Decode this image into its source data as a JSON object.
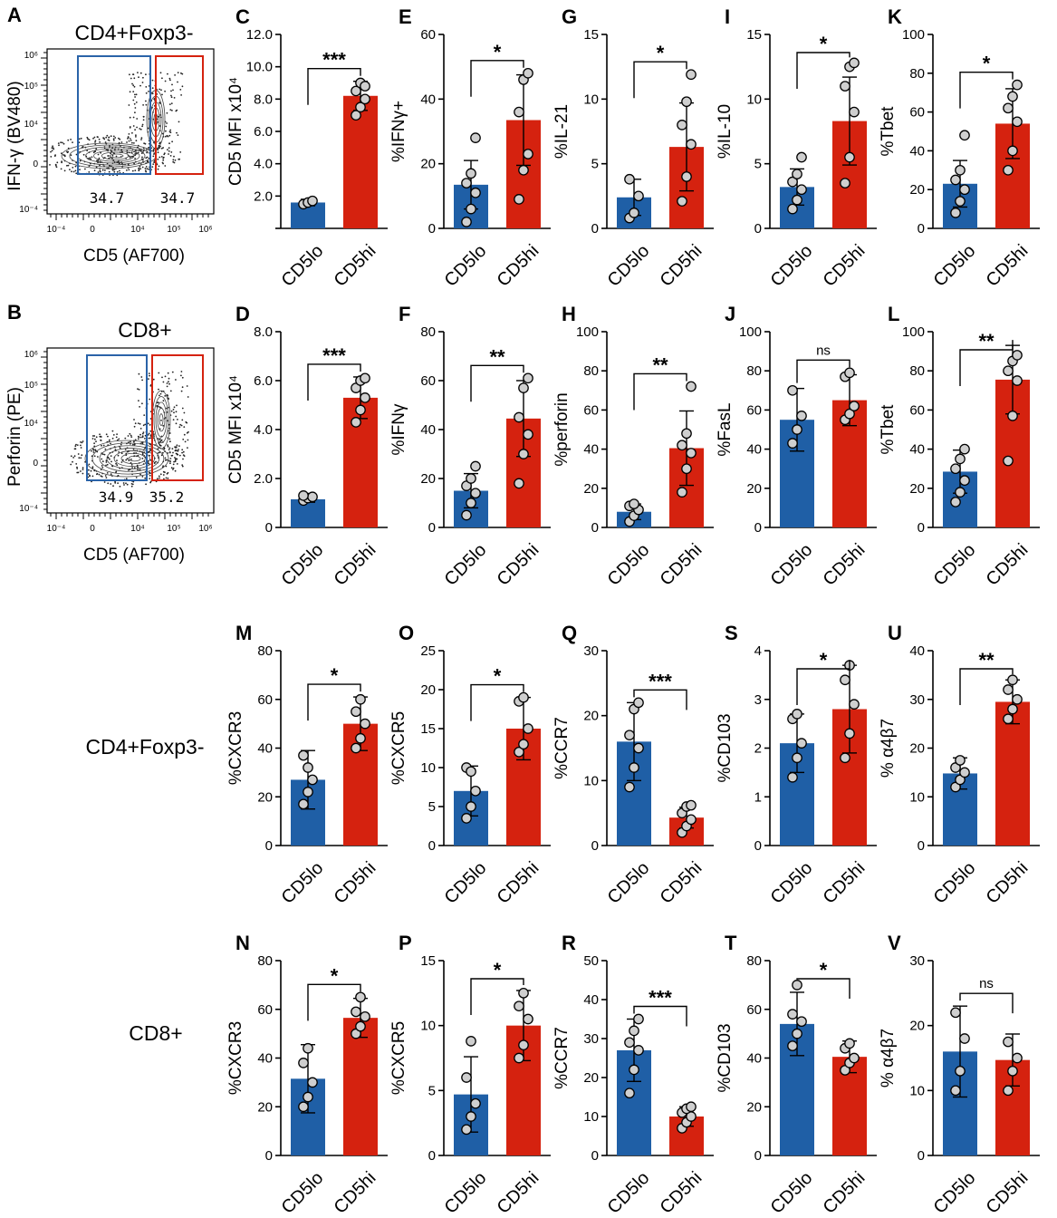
{
  "colors": {
    "lo": "#1f5fa6",
    "hi": "#d5220f",
    "dot": "#cfcfcf",
    "contour": "#444444"
  },
  "row_labels": {
    "row3": "CD4+Foxp3-",
    "row4": "CD8+"
  },
  "flow_panels": [
    {
      "id": "A",
      "label": "A",
      "title": "CD4+Foxp3-",
      "ylabel": "IFN-γ (BV480)",
      "xlabel": "CD5 (AF700)",
      "gate_lo_pct": "34.7",
      "gate_hi_pct": "34.7",
      "x_ticks": [
        "10⁻⁴",
        "0",
        "10⁴",
        "10⁵",
        "10⁶"
      ],
      "y_ticks": [
        "10⁶",
        "10⁵",
        "10⁴",
        "0",
        "10⁻⁴"
      ]
    },
    {
      "id": "B",
      "label": "B",
      "title": "CD8+",
      "ylabel": "Perforin (PE)",
      "xlabel": "CD5 (AF700)",
      "gate_lo_pct": "34.9",
      "gate_hi_pct": "35.2",
      "x_ticks": [
        "10⁻⁴",
        "0",
        "10⁴",
        "10⁵",
        "10⁶"
      ],
      "y_ticks": [
        "10⁶",
        "10⁵",
        "10⁴",
        "0",
        "10⁻⁴"
      ]
    }
  ],
  "chart_data": [
    {
      "id": "C",
      "type": "bar",
      "label": "C",
      "ylabel": "CD5 MFI x10⁴",
      "categories": [
        "CD5lo",
        "CD5hi"
      ],
      "ylim": [
        0,
        12
      ],
      "yticks": [
        "",
        "2.0",
        "4.0",
        "6.0",
        "8.0",
        "10.0",
        "12.0"
      ],
      "means": [
        1.6,
        8.2
      ],
      "sd": [
        0.2,
        0.9
      ],
      "points": [
        [
          1.5,
          1.6,
          1.7
        ],
        [
          7.0,
          7.5,
          8.0,
          8.5,
          9.0,
          8.8
        ]
      ],
      "sig": "***"
    },
    {
      "id": "E",
      "type": "bar",
      "label": "E",
      "ylabel": "%IFNγ+",
      "categories": [
        "CD5lo",
        "CD5hi"
      ],
      "ylim": [
        0,
        60
      ],
      "yticks": [
        "0",
        "20",
        "40",
        "60"
      ],
      "means": [
        13.5,
        33.5
      ],
      "sd": [
        7.5,
        14
      ],
      "points": [
        [
          2,
          6,
          11,
          14,
          17,
          28
        ],
        [
          9,
          18,
          23,
          36,
          46,
          48
        ]
      ],
      "sig": "*"
    },
    {
      "id": "G",
      "type": "bar",
      "label": "G",
      "ylabel": "%IL-21",
      "categories": [
        "CD5lo",
        "CD5hi"
      ],
      "ylim": [
        0,
        15
      ],
      "yticks": [
        "0",
        "5",
        "10",
        "15"
      ],
      "means": [
        2.4,
        6.3
      ],
      "sd": [
        1.4,
        3.4
      ],
      "points": [
        [
          0.8,
          1.2,
          2.5,
          3.8
        ],
        [
          2.1,
          4.0,
          6.5,
          8.0,
          9.8,
          11.9
        ]
      ],
      "sig": "*"
    },
    {
      "id": "I",
      "type": "bar",
      "label": "I",
      "ylabel": "%IL-10",
      "categories": [
        "CD5lo",
        "CD5hi"
      ],
      "ylim": [
        0,
        15
      ],
      "yticks": [
        "0",
        "5",
        "10",
        "15"
      ],
      "means": [
        3.2,
        8.3
      ],
      "sd": [
        1.4,
        3.4
      ],
      "points": [
        [
          1.5,
          2.2,
          3.0,
          3.6,
          4.2,
          5.5
        ],
        [
          3.5,
          5.5,
          9.0,
          11.0,
          12.5,
          12.8
        ]
      ],
      "sig": "*"
    },
    {
      "id": "K",
      "type": "bar",
      "label": "K",
      "ylabel": "%Tbet",
      "categories": [
        "CD5lo",
        "CD5hi"
      ],
      "ylim": [
        0,
        100
      ],
      "yticks": [
        "0",
        "20",
        "40",
        "60",
        "80",
        "100"
      ],
      "means": [
        23,
        54
      ],
      "sd": [
        12,
        18
      ],
      "points": [
        [
          8,
          14,
          20,
          25,
          30,
          48
        ],
        [
          30,
          40,
          55,
          62,
          68,
          74
        ]
      ],
      "sig": "*"
    },
    {
      "id": "D",
      "type": "bar",
      "label": "D",
      "ylabel": "CD5 MFI x10⁴",
      "categories": [
        "CD5lo",
        "CD5hi"
      ],
      "ylim": [
        0,
        8
      ],
      "yticks": [
        "0",
        "2.0",
        "4.0",
        "6.0",
        "8.0"
      ],
      "means": [
        1.15,
        5.3
      ],
      "sd": [
        0.12,
        0.85
      ],
      "points": [
        [
          1.1,
          1.2,
          1.25,
          1.3
        ],
        [
          4.3,
          4.8,
          5.3,
          5.7,
          6.0,
          6.1
        ]
      ],
      "sig": "***"
    },
    {
      "id": "F",
      "type": "bar",
      "label": "F",
      "ylabel": "%IFNγ",
      "categories": [
        "CD5lo",
        "CD5hi"
      ],
      "ylim": [
        0,
        80
      ],
      "yticks": [
        "0",
        "20",
        "40",
        "60",
        "80"
      ],
      "means": [
        15,
        44.5
      ],
      "sd": [
        7,
        15.5
      ],
      "points": [
        [
          5,
          10,
          14,
          17,
          20,
          25
        ],
        [
          18,
          30,
          38,
          45,
          57,
          61
        ]
      ],
      "sig": "**"
    },
    {
      "id": "H",
      "type": "bar",
      "label": "H",
      "ylabel": "%perforin",
      "categories": [
        "CD5lo",
        "CD5hi"
      ],
      "ylim": [
        0,
        100
      ],
      "yticks": [
        "0",
        "20",
        "40",
        "60",
        "80",
        "100"
      ],
      "means": [
        8,
        40.5
      ],
      "sd": [
        4,
        19
      ],
      "points": [
        [
          3,
          6,
          9,
          11,
          12
        ],
        [
          18,
          30,
          38,
          42,
          48,
          72
        ]
      ],
      "sig": "**"
    },
    {
      "id": "J",
      "type": "bar",
      "label": "J",
      "ylabel": "%FasL",
      "categories": [
        "CD5lo",
        "CD5hi"
      ],
      "ylim": [
        0,
        100
      ],
      "yticks": [
        "0",
        "20",
        "40",
        "60",
        "80",
        "100"
      ],
      "means": [
        55,
        65
      ],
      "sd": [
        16,
        13
      ],
      "points": [
        [
          43,
          50,
          57,
          70
        ],
        [
          55,
          58,
          62,
          77,
          79
        ]
      ],
      "sig": "ns"
    },
    {
      "id": "L",
      "type": "bar",
      "label": "L",
      "ylabel": "%Tbet",
      "categories": [
        "CD5lo",
        "CD5hi"
      ],
      "ylim": [
        0,
        100
      ],
      "yticks": [
        "0",
        "20",
        "40",
        "60",
        "80",
        "100"
      ],
      "means": [
        28.5,
        75.5
      ],
      "sd": [
        11,
        17.5
      ],
      "points": [
        [
          13,
          18,
          24,
          30,
          35,
          40
        ],
        [
          34,
          57,
          75,
          80,
          85,
          88
        ]
      ],
      "sig": "**"
    },
    {
      "id": "M",
      "type": "bar",
      "label": "M",
      "ylabel": "%CXCR3",
      "categories": [
        "CD5lo",
        "CD5hi"
      ],
      "ylim": [
        0,
        80
      ],
      "yticks": [
        "0",
        "20",
        "40",
        "60",
        "80"
      ],
      "means": [
        27,
        50
      ],
      "sd": [
        12,
        11
      ],
      "points": [
        [
          17,
          22,
          27,
          37,
          32
        ],
        [
          40,
          44,
          50,
          55,
          60
        ]
      ],
      "sig": "*"
    },
    {
      "id": "O",
      "type": "bar",
      "label": "O",
      "ylabel": "%CXCR5",
      "categories": [
        "CD5lo",
        "CD5hi"
      ],
      "ylim": [
        0,
        25
      ],
      "yticks": [
        "0",
        "5",
        "10",
        "15",
        "20",
        "25"
      ],
      "means": [
        7,
        15
      ],
      "sd": [
        3.2,
        4
      ],
      "points": [
        [
          3.5,
          5,
          7,
          10,
          9.5
        ],
        [
          12,
          13,
          15,
          18.5,
          19
        ]
      ],
      "sig": "*"
    },
    {
      "id": "Q",
      "type": "bar",
      "label": "Q",
      "ylabel": "%CCR7",
      "categories": [
        "CD5lo",
        "CD5hi"
      ],
      "ylim": [
        0,
        30
      ],
      "yticks": [
        "0",
        "10",
        "20",
        "30"
      ],
      "means": [
        16,
        4.3
      ],
      "sd": [
        6,
        1.6
      ],
      "points": [
        [
          9,
          12,
          15,
          17,
          21,
          22
        ],
        [
          2,
          3,
          4,
          5,
          6,
          6.2
        ]
      ],
      "sig": "***"
    },
    {
      "id": "S",
      "type": "bar",
      "label": "S",
      "ylabel": "%CD103",
      "categories": [
        "CD5lo",
        "CD5hi"
      ],
      "ylim": [
        0,
        4
      ],
      "yticks": [
        "0",
        "1",
        "2",
        "3",
        "4"
      ],
      "means": [
        2.1,
        2.8
      ],
      "sd": [
        0.6,
        0.9
      ],
      "points": [
        [
          1.4,
          1.8,
          2.1,
          2.6,
          2.7
        ],
        [
          1.8,
          2.3,
          2.9,
          3.4,
          3.7
        ]
      ],
      "sig": "*"
    },
    {
      "id": "U",
      "type": "bar",
      "label": "U",
      "ylabel": "% α4β7",
      "categories": [
        "CD5lo",
        "CD5hi"
      ],
      "ylim": [
        0,
        40
      ],
      "yticks": [
        "0",
        "10",
        "20",
        "30",
        "40"
      ],
      "means": [
        14.8,
        29.5
      ],
      "sd": [
        3.2,
        4.5
      ],
      "points": [
        [
          12,
          13.5,
          15,
          16,
          17.5
        ],
        [
          26,
          28,
          30,
          32,
          34
        ]
      ],
      "sig": "**"
    },
    {
      "id": "N",
      "type": "bar",
      "label": "N",
      "ylabel": "%CXCR3",
      "categories": [
        "CD5lo",
        "CD5hi"
      ],
      "ylim": [
        0,
        80
      ],
      "yticks": [
        "0",
        "20",
        "40",
        "60",
        "80"
      ],
      "means": [
        31.5,
        56.5
      ],
      "sd": [
        14,
        8
      ],
      "points": [
        [
          20,
          24,
          30,
          38,
          44
        ],
        [
          50,
          53,
          57,
          59,
          65
        ]
      ],
      "sig": "*"
    },
    {
      "id": "P",
      "type": "bar",
      "label": "P",
      "ylabel": "%CXCR5",
      "categories": [
        "CD5lo",
        "CD5hi"
      ],
      "ylim": [
        0,
        15
      ],
      "yticks": [
        "0",
        "5",
        "10",
        "15"
      ],
      "means": [
        4.7,
        10
      ],
      "sd": [
        2.9,
        2.7
      ],
      "points": [
        [
          2.0,
          3.0,
          4.0,
          6.0,
          8.8
        ],
        [
          7.5,
          8.5,
          10.5,
          11.5,
          12.5
        ]
      ],
      "sig": "*"
    },
    {
      "id": "R",
      "type": "bar",
      "label": "R",
      "ylabel": "%CCR7",
      "categories": [
        "CD5lo",
        "CD5hi"
      ],
      "ylim": [
        0,
        50
      ],
      "yticks": [
        "0",
        "10",
        "20",
        "30",
        "40",
        "50"
      ],
      "means": [
        27,
        10
      ],
      "sd": [
        8,
        2.5
      ],
      "points": [
        [
          16,
          22,
          27,
          29,
          32,
          35
        ],
        [
          7,
          8.5,
          10,
          11,
          12,
          12.5
        ]
      ],
      "sig": "***"
    },
    {
      "id": "T",
      "type": "bar",
      "label": "T",
      "ylabel": "%CD103",
      "categories": [
        "CD5lo",
        "CD5hi"
      ],
      "ylim": [
        0,
        80
      ],
      "yticks": [
        "0",
        "20",
        "40",
        "60",
        "80"
      ],
      "means": [
        54,
        40.5
      ],
      "sd": [
        13,
        6.5
      ],
      "points": [
        [
          45,
          50,
          55,
          58,
          70
        ],
        [
          35,
          38,
          40,
          44,
          46
        ]
      ],
      "sig": "*"
    },
    {
      "id": "V",
      "type": "bar",
      "label": "V",
      "ylabel": "% α4β7",
      "categories": [
        "CD5lo",
        "CD5hi"
      ],
      "ylim": [
        0,
        30
      ],
      "yticks": [
        "0",
        "10",
        "20",
        "30"
      ],
      "means": [
        16,
        14.7
      ],
      "sd": [
        7,
        4
      ],
      "points": [
        [
          10,
          13,
          18,
          22
        ],
        [
          10,
          13,
          15,
          17.5
        ]
      ],
      "sig": "ns"
    }
  ]
}
